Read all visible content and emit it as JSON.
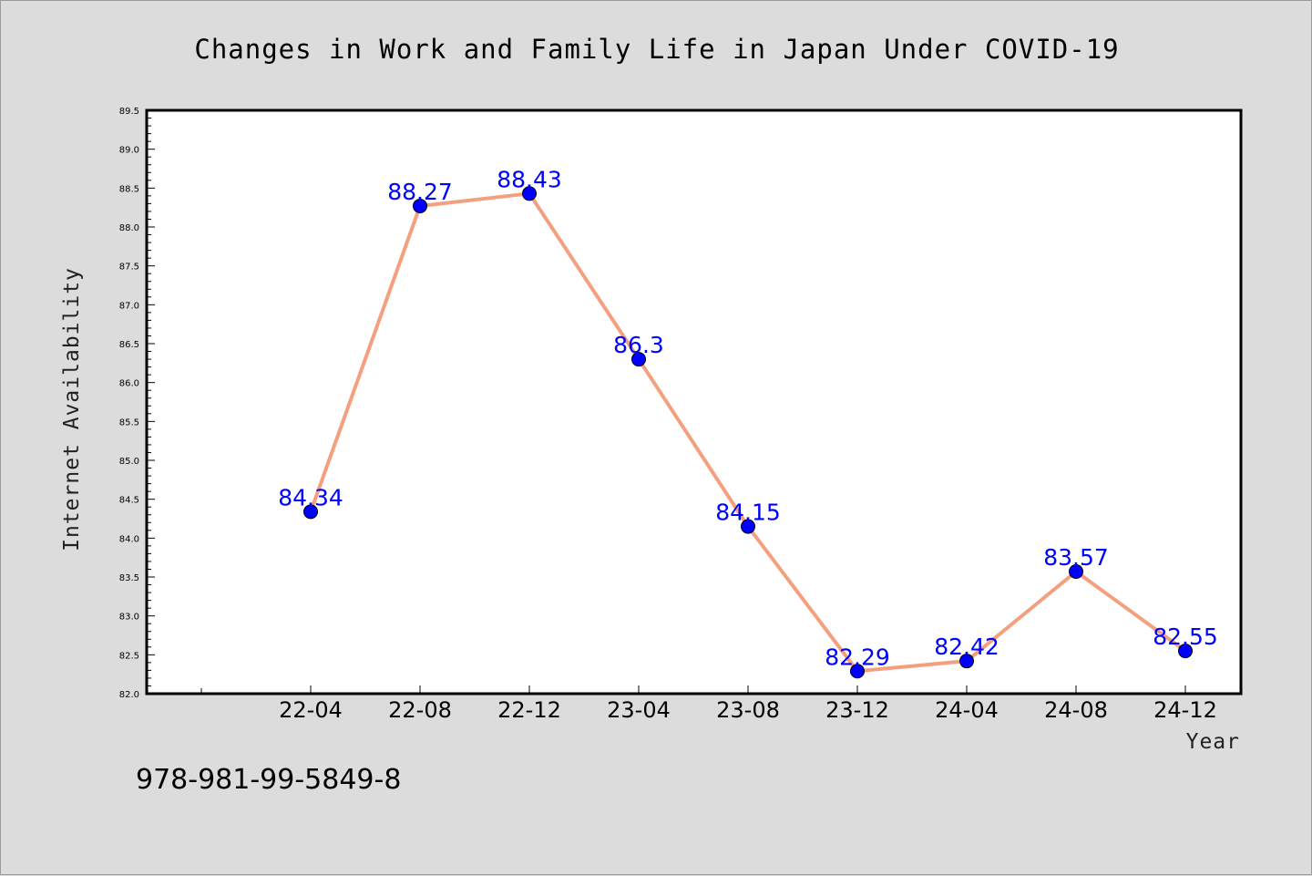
{
  "chart_data": {
    "type": "line",
    "title": "Changes in Work and Family Life in Japan Under COVID-19",
    "xlabel": "Year",
    "ylabel": "Internet Availability",
    "x": [
      "22-04",
      "22-08",
      "22-12",
      "23-04",
      "23-08",
      "23-12",
      "24-04",
      "24-08",
      "24-12"
    ],
    "values": [
      84.34,
      88.27,
      88.43,
      86.3,
      84.15,
      82.29,
      82.42,
      83.57,
      82.55
    ],
    "data_labels": [
      "84.34",
      "88.27",
      "88.43",
      "86.3",
      "84.15",
      "82.29",
      "82.42",
      "83.57",
      "82.55"
    ],
    "ylim": [
      82.0,
      89.5
    ],
    "yticks": [
      "82.0",
      "82.5",
      "83.0",
      "83.5",
      "84.0",
      "84.5",
      "85.0",
      "85.5",
      "86.0",
      "86.5",
      "87.0",
      "87.5",
      "88.0",
      "88.5",
      "89.0",
      "89.5"
    ],
    "grid": false,
    "line_color": "#f4a07f",
    "marker_color": "#0000ff",
    "label_color": "#0000ff"
  },
  "footer_text": "978-981-99-5849-8"
}
